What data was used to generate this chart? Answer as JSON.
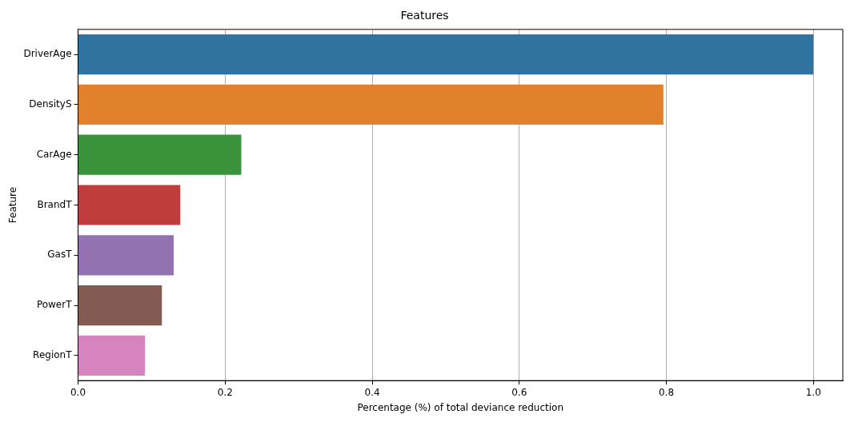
{
  "chart_data": {
    "type": "bar",
    "orientation": "horizontal",
    "title": "Features",
    "xlabel": "Percentage (%) of total deviance reduction",
    "ylabel": "Feature",
    "categories": [
      "DriverAge",
      "DensityS",
      "CarAge",
      "BrandT",
      "GasT",
      "PowerT",
      "RegionT"
    ],
    "values": [
      1.0,
      0.796,
      0.222,
      0.139,
      0.13,
      0.114,
      0.091
    ],
    "colors": [
      "#3274a1",
      "#e1812c",
      "#3a923a",
      "#c03d3e",
      "#9372b2",
      "#845b53",
      "#d684bd"
    ],
    "xlim": [
      0,
      1.04
    ],
    "xticks": [
      {
        "value": 0,
        "label": "0.0"
      },
      {
        "value": 0.2,
        "label": "0.2"
      },
      {
        "value": 0.4,
        "label": "0.4"
      },
      {
        "value": 0.6,
        "label": "0.6"
      },
      {
        "value": 0.8,
        "label": "0.8"
      },
      {
        "value": 1.0,
        "label": "1.0"
      }
    ],
    "grid": "x"
  }
}
